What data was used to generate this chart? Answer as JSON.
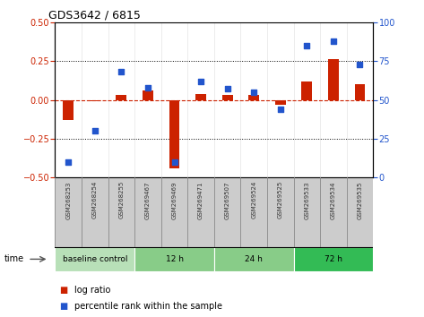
{
  "title": "GDS3642 / 6815",
  "samples": [
    "GSM268253",
    "GSM268254",
    "GSM268255",
    "GSM269467",
    "GSM269469",
    "GSM269471",
    "GSM269507",
    "GSM269524",
    "GSM269525",
    "GSM269533",
    "GSM269534",
    "GSM269535"
  ],
  "log_ratio": [
    -0.13,
    -0.01,
    0.03,
    0.06,
    -0.44,
    0.04,
    0.03,
    0.03,
    -0.03,
    0.12,
    0.26,
    0.1
  ],
  "percentile_rank": [
    10,
    30,
    68,
    58,
    10,
    62,
    57,
    55,
    44,
    85,
    88,
    73
  ],
  "ylim_left": [
    -0.5,
    0.5
  ],
  "ylim_right": [
    0,
    100
  ],
  "yticks_left": [
    -0.5,
    -0.25,
    0,
    0.25,
    0.5
  ],
  "yticks_right": [
    0,
    25,
    50,
    75,
    100
  ],
  "bar_color": "#cc2200",
  "scatter_color": "#2255cc",
  "groups": [
    {
      "label": "baseline control",
      "start": 0,
      "end": 3,
      "color": "#b8e0b8"
    },
    {
      "label": "12 h",
      "start": 3,
      "end": 6,
      "color": "#88cc88"
    },
    {
      "label": "24 h",
      "start": 6,
      "end": 9,
      "color": "#88cc88"
    },
    {
      "label": "72 h",
      "start": 9,
      "end": 12,
      "color": "#33bb55"
    }
  ],
  "time_label": "time",
  "legend_bar_label": "log ratio",
  "legend_scatter_label": "percentile rank within the sample",
  "xtick_bg": "#cccccc",
  "xtick_sep_color": "#888888"
}
